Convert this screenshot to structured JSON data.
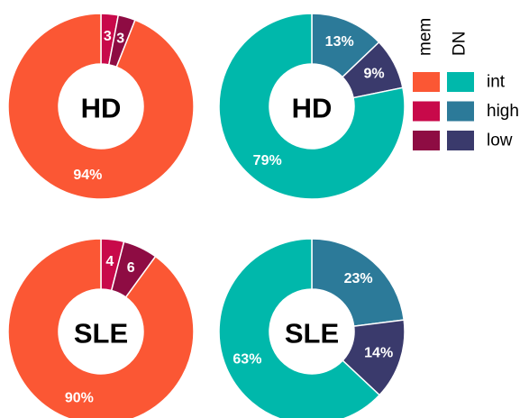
{
  "chart_data": [
    {
      "type": "pie",
      "center_label": "HD",
      "categories": [
        "high",
        "low",
        "int"
      ],
      "values": [
        3,
        3,
        94
      ],
      "value_labels": [
        "3",
        "3",
        "94%"
      ],
      "colors": [
        "#c8094a",
        "#8e0c43",
        "#fb5734"
      ]
    },
    {
      "type": "pie",
      "center_label": "HD",
      "categories": [
        "high",
        "low",
        "int"
      ],
      "values": [
        13,
        9,
        79
      ],
      "value_labels": [
        "13%",
        "9%",
        "79%"
      ],
      "colors": [
        "#2c7a99",
        "#3a3a6c",
        "#00b8ab"
      ]
    },
    {
      "type": "pie",
      "center_label": "SLE",
      "categories": [
        "high",
        "low",
        "int"
      ],
      "values": [
        4,
        6,
        90
      ],
      "value_labels": [
        "4",
        "6",
        "90%"
      ],
      "colors": [
        "#c8094a",
        "#8e0c43",
        "#fb5734"
      ]
    },
    {
      "type": "pie",
      "center_label": "SLE",
      "categories": [
        "high",
        "low",
        "int"
      ],
      "values": [
        23,
        14,
        63
      ],
      "value_labels": [
        "23%",
        "14%",
        "63%"
      ],
      "colors": [
        "#2c7a99",
        "#3a3a6c",
        "#00b8ab"
      ]
    }
  ],
  "legend": {
    "groups": [
      {
        "title": "mem",
        "colors": [
          "#fb5734",
          "#c8094a",
          "#8e0c43"
        ]
      },
      {
        "title": "DN",
        "colors": [
          "#00b8ab",
          "#2c7a99",
          "#3a3a6c"
        ]
      }
    ],
    "labels": [
      "int",
      "high",
      "low"
    ]
  }
}
